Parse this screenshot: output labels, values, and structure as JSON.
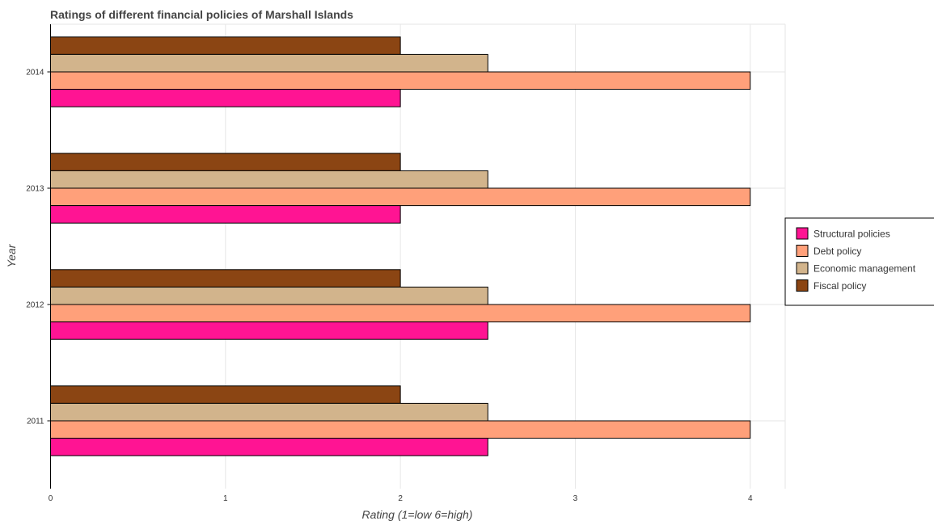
{
  "chart_data": {
    "type": "bar",
    "orientation": "horizontal",
    "title": "Ratings of different financial policies of Marshall Islands",
    "xlabel": "Rating (1=low 6=high)",
    "ylabel": "Year",
    "categories": [
      "2011",
      "2012",
      "2013",
      "2014"
    ],
    "x_ticks": [
      "0",
      "1",
      "2",
      "3",
      "4"
    ],
    "xlim": [
      0,
      4.2
    ],
    "grid": true,
    "legend_position": "right",
    "series": [
      {
        "name": "Structural policies",
        "color": "#FF1493",
        "values": [
          2.5,
          2.5,
          2.0,
          2.0
        ]
      },
      {
        "name": "Debt policy",
        "color": "#FFA07A",
        "values": [
          4.0,
          4.0,
          4.0,
          4.0
        ]
      },
      {
        "name": "Economic management",
        "color": "#D2B48C",
        "values": [
          2.5,
          2.5,
          2.5,
          2.5
        ]
      },
      {
        "name": "Fiscal policy",
        "color": "#8B4513",
        "values": [
          2.0,
          2.0,
          2.0,
          2.0
        ]
      }
    ]
  }
}
